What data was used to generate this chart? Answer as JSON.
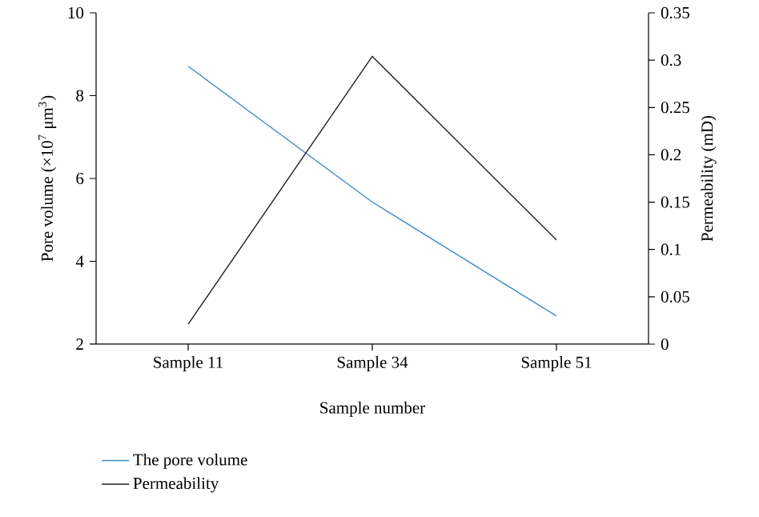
{
  "chart_data": {
    "type": "line",
    "xlabel": "Sample number",
    "ylabel": "Pore volume (×10$^{7}$ μm$^{3}$)",
    "y2label": "Permeability (mD)",
    "categories": [
      "Sample 11",
      "Sample 34",
      "Sample 51"
    ],
    "series": [
      {
        "name": "The pore volume",
        "color": "#3d8fc6",
        "values": [
          8.71,
          5.43,
          2.68
        ]
      },
      {
        "name": "Permeability",
        "color": "#231f20",
        "values": [
          0.021,
          0.304,
          0.11
        ],
        "axis": "y2"
      }
    ],
    "ylim": [
      2,
      10
    ],
    "yticks": [
      2,
      4,
      6,
      8,
      10
    ],
    "y2lim": [
      0,
      0.35
    ],
    "y2ticks": [
      0,
      0.05,
      0.1,
      0.15,
      0.2,
      0.25,
      0.3,
      0.35
    ],
    "legend": "bottom left",
    "grid": false,
    "marker": "none",
    "line_style": "solid"
  }
}
